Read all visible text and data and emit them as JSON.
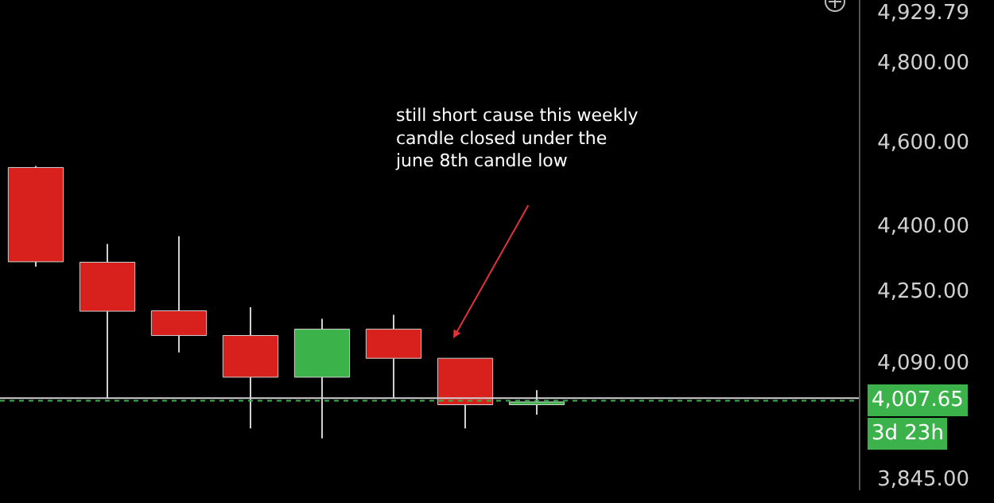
{
  "chart_data": {
    "type": "candlestick",
    "categories": [
      null,
      null,
      null,
      null,
      null,
      null,
      null,
      null,
      null,
      null,
      null,
      null
    ],
    "ohlc": [
      [
        4537,
        4541,
        4304,
        4315
      ],
      [
        4314,
        4356,
        4013,
        4203
      ],
      [
        4204,
        4374,
        4112,
        4149
      ],
      [
        4149,
        4212,
        3949,
        4058
      ],
      [
        4058,
        4186,
        3928,
        4163
      ],
      [
        4163,
        4195,
        4013,
        4099
      ],
      [
        4099,
        4099,
        3949,
        3999
      ],
      [
        3999,
        4030,
        3978,
        4005
      ],
      null,
      null,
      null,
      null
    ],
    "colors": [
      "#d8201c",
      "#d8201c",
      "#d8201c",
      "#d8201c",
      "#3cb34a",
      "#d8201c",
      "#d8201c",
      "#3cb34a",
      null,
      null,
      null,
      null
    ],
    "log": true,
    "ylim": [
      3821,
      4960
    ],
    "yticks": [
      {
        "value": 3845,
        "label": "3,845.00"
      },
      {
        "value": 4090,
        "label": "4,090.00"
      },
      {
        "value": 4250,
        "label": "4,250.00"
      },
      {
        "value": 4400,
        "label": "4,400.00"
      },
      {
        "value": 4600,
        "label": "4,600.00"
      },
      {
        "value": 4800,
        "label": "4,800.00"
      },
      {
        "value": 4929.79,
        "label": "4,929.79"
      }
    ],
    "grid": false,
    "ref_lines": [
      {
        "axis": "y",
        "value": 4007.65,
        "label": "4,007.65",
        "color": "#3cb34a",
        "line_style": "dotted"
      },
      {
        "axis": "y",
        "value": 4013,
        "label": null,
        "color": "#d0d0d0",
        "line_style": "solid"
      }
    ],
    "annotations": [
      "still short cause this weekly candle closed under the june 8th candle low",
      "3d 23h"
    ]
  }
}
